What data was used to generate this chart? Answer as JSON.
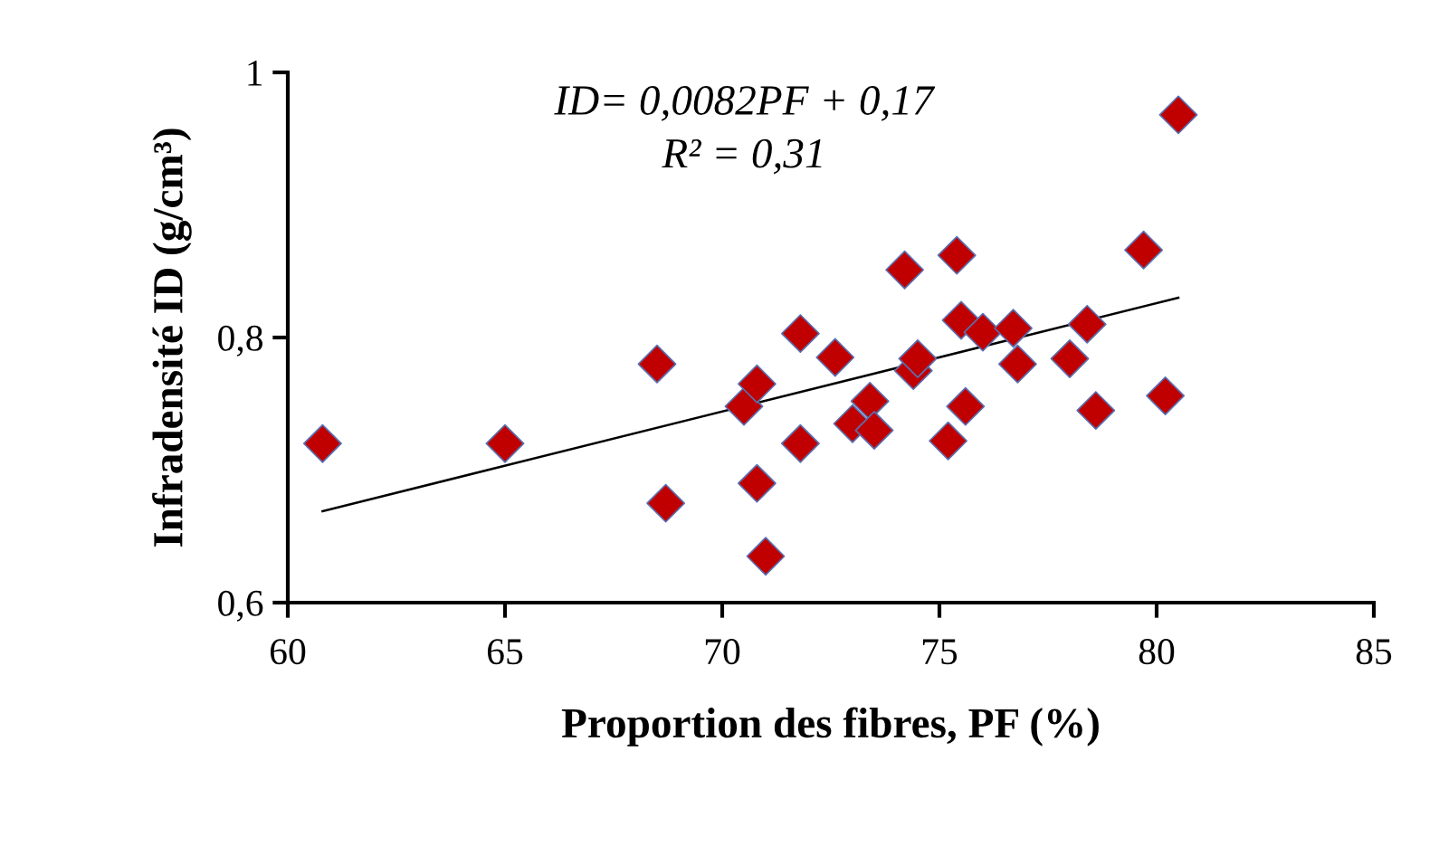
{
  "chart_data": {
    "type": "scatter",
    "xlabel": "Proportion des fibres, PF (%)",
    "ylabel": "Infradensité ID (g/cm³)",
    "xlim": [
      60,
      85
    ],
    "xticks": [
      60,
      65,
      70,
      75,
      80,
      85
    ],
    "ylim": [
      0.6,
      1
    ],
    "yticks": [
      {
        "value": 0.6,
        "label": "0,6"
      },
      {
        "value": 0.8,
        "label": "0,8"
      },
      {
        "value": 1,
        "label": "1"
      }
    ],
    "grid": false,
    "legend": false,
    "annotations": [
      "ID= 0,0082PF + 0,17",
      "R² = 0,31"
    ],
    "series": [
      {
        "marker": "diamond",
        "color": "#c00000",
        "x": [
          60.8,
          65,
          68.5,
          68.7,
          70.5,
          70.8,
          70.8,
          71,
          71.8,
          71.8,
          72.6,
          73,
          73.4,
          73.5,
          74.2,
          74.4,
          74.5,
          75.2,
          75.4,
          75.5,
          75.6,
          76,
          76.7,
          76.8,
          78,
          78.4,
          78.6,
          79.7,
          80.2,
          80.5
        ],
        "values": [
          0.72,
          0.72,
          0.78,
          0.675,
          0.748,
          0.765,
          0.69,
          0.635,
          0.803,
          0.72,
          0.785,
          0.735,
          0.752,
          0.73,
          0.851,
          0.775,
          0.784,
          0.722,
          0.862,
          0.813,
          0.748,
          0.804,
          0.807,
          0.78,
          0.784,
          0.81,
          0.745,
          0.866,
          0.756,
          0.968
        ]
      },
      {
        "type": "line",
        "marker": "none",
        "color": "#000000",
        "x": [
          60.8,
          80.5
        ],
        "values": [
          0.669,
          0.83
        ]
      }
    ]
  }
}
